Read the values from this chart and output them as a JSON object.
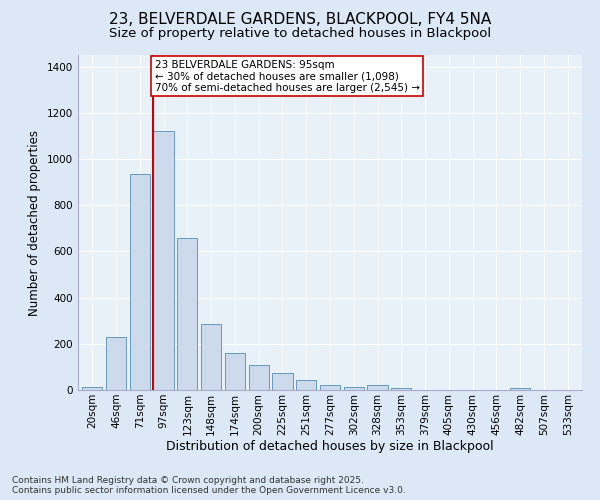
{
  "title": "23, BELVERDALE GARDENS, BLACKPOOL, FY4 5NA",
  "subtitle": "Size of property relative to detached houses in Blackpool",
  "xlabel": "Distribution of detached houses by size in Blackpool",
  "ylabel": "Number of detached properties",
  "footer": "Contains HM Land Registry data © Crown copyright and database right 2025.\nContains public sector information licensed under the Open Government Licence v3.0.",
  "categories": [
    "20sqm",
    "46sqm",
    "71sqm",
    "97sqm",
    "123sqm",
    "148sqm",
    "174sqm",
    "200sqm",
    "225sqm",
    "251sqm",
    "277sqm",
    "302sqm",
    "328sqm",
    "353sqm",
    "379sqm",
    "405sqm",
    "430sqm",
    "456sqm",
    "482sqm",
    "507sqm",
    "533sqm"
  ],
  "values": [
    15,
    228,
    935,
    1120,
    660,
    285,
    160,
    108,
    73,
    43,
    20,
    13,
    20,
    8,
    0,
    0,
    0,
    0,
    10,
    0,
    0
  ],
  "bar_color": "#ccdaeb",
  "bar_edge_color": "#6699bb",
  "vline_color": "#cc0000",
  "annotation_text": "23 BELVERDALE GARDENS: 95sqm\n← 30% of detached houses are smaller (1,098)\n70% of semi-detached houses are larger (2,545) →",
  "annotation_box_color": "#ffffff",
  "annotation_box_edge_color": "#cc0000",
  "ylim": [
    0,
    1450
  ],
  "yticks": [
    0,
    200,
    400,
    600,
    800,
    1000,
    1200,
    1400
  ],
  "bg_color": "#dce8f5",
  "plot_bg_color": "#e8f0f8",
  "title_fontsize": 11,
  "subtitle_fontsize": 9.5,
  "ylabel_fontsize": 8.5,
  "xlabel_fontsize": 9,
  "tick_fontsize": 7.5,
  "footer_fontsize": 6.5,
  "annotation_fontsize": 7.5
}
